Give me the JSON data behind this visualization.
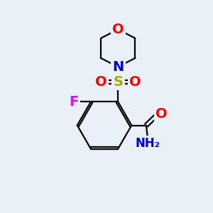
{
  "bg_color": "#eaf0f7",
  "bond_color": "#000000",
  "bond_width": 1.6,
  "atom_colors": {
    "O": "#ff0000",
    "N_morph": "#0000cc",
    "N_amide": "#0000cc",
    "S": "#aaaa00",
    "F": "#ee00ee",
    "C": "#000000"
  },
  "font_size_large": 14,
  "font_size_med": 12,
  "font_size_small": 10
}
